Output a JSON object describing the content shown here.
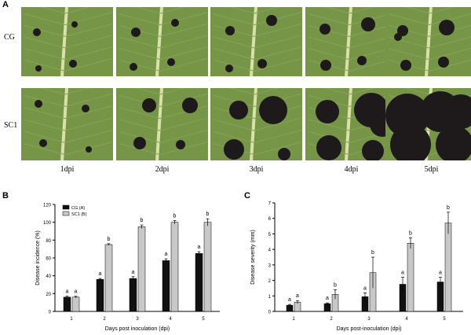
{
  "figure": {
    "panel_a_letter": "A",
    "panel_b_letter": "B",
    "panel_c_letter": "C",
    "row_labels": [
      "CG",
      "SC1"
    ],
    "time_labels": [
      "1dpi",
      "2dpi",
      "3dpi",
      "4dpi",
      "5dpi"
    ],
    "leaf_color": "#6f8f3f",
    "lesion_color": "#1e1a1c"
  },
  "chart_data": [
    {
      "type": "bar",
      "xlabel": "Days post inoculation (dpi)",
      "ylabel": "Disease incidence (%)",
      "categories": [
        "1",
        "2",
        "3",
        "4",
        "5"
      ],
      "ylim": [
        0,
        120
      ],
      "yticks": [
        "0",
        "20",
        "40",
        "60",
        "80",
        "100",
        "120"
      ],
      "legend": {
        "position": "top-left",
        "entries": [
          "CG (A)",
          "SC1 (B)"
        ]
      },
      "series": [
        {
          "name": "CG (A)",
          "color": "#111111",
          "values": [
            16,
            36,
            37,
            57,
            65
          ],
          "errors": [
            1,
            1,
            2,
            2,
            2
          ],
          "labels": [
            "a",
            "a",
            "a",
            "a",
            "a"
          ]
        },
        {
          "name": "SC1 (B)",
          "color": "#c8c8c8",
          "values": [
            16,
            75,
            95,
            100,
            100
          ],
          "errors": [
            1,
            1,
            2,
            2,
            4
          ],
          "labels": [
            "a",
            "b",
            "b",
            "b",
            "b"
          ]
        }
      ]
    },
    {
      "type": "bar",
      "xlabel": "Days post-inoculation (dpi)",
      "ylabel": "Disease severity (mm)",
      "categories": [
        "1",
        "2",
        "3",
        "4",
        "5"
      ],
      "ylim": [
        0,
        7
      ],
      "yticks": [
        "0",
        "1",
        "2",
        "3",
        "4",
        "5",
        "6",
        "7"
      ],
      "series": [
        {
          "color": "#111111",
          "values": [
            0.4,
            0.5,
            0.95,
            1.75,
            1.9
          ],
          "errors": [
            0.05,
            0.05,
            0.25,
            0.45,
            0.3
          ],
          "labels": [
            "a",
            "a",
            "a",
            "a",
            "a"
          ]
        },
        {
          "color": "#c8c8c8",
          "values": [
            0.6,
            1.1,
            2.5,
            4.4,
            5.7
          ],
          "errors": [
            0.1,
            0.3,
            1.0,
            0.35,
            0.7
          ],
          "labels": [
            "a",
            "b",
            "b",
            "b",
            "b"
          ]
        }
      ]
    }
  ]
}
